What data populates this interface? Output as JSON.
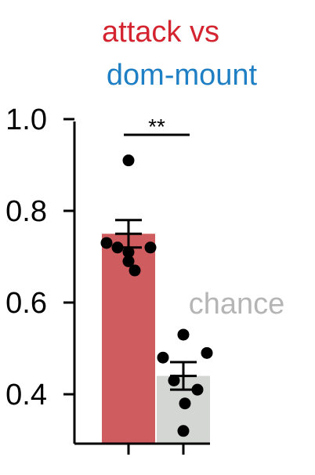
{
  "chart_data": {
    "type": "bar",
    "title_line1": "attack vs",
    "title_line2": "dom-mount",
    "title_colors": {
      "line1": "#d4242f",
      "line2": "#1f7fc4"
    },
    "categories": [
      "attack vs dom-mount",
      "chance"
    ],
    "values": [
      0.75,
      0.44
    ],
    "errors": [
      0.03,
      0.03
    ],
    "bar_colors": [
      "#cf5c5e",
      "#d3d6d3"
    ],
    "points": [
      [
        0.91,
        0.73,
        0.72,
        0.71,
        0.72,
        0.69,
        0.67
      ],
      [
        0.53,
        0.49,
        0.48,
        0.43,
        0.41,
        0.38,
        0.32
      ]
    ],
    "ylim": [
      0.3,
      1.0
    ],
    "yticks": [
      "1.0",
      "0.8",
      "0.6",
      "0.4"
    ],
    "ytick_values": [
      1.0,
      0.8,
      0.6,
      0.4
    ],
    "significance": "**",
    "chance_label": "chance",
    "chance_color": "#b5b5b5",
    "xlabel": "",
    "ylabel": "",
    "grid": false
  }
}
